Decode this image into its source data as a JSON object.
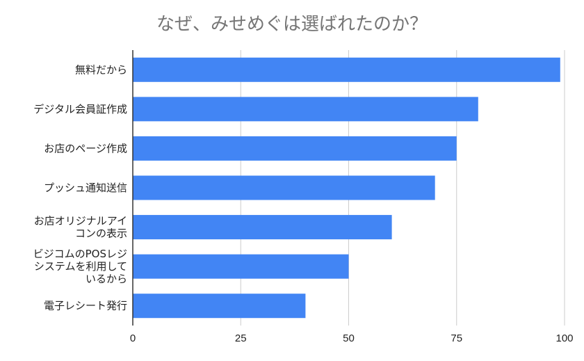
{
  "chart_data": {
    "type": "bar",
    "orientation": "horizontal",
    "title": "なぜ、みせめぐは選ばれたのか？",
    "xlabel": "",
    "ylabel": "",
    "categories": [
      "無料だから",
      "デジタル会員証作成",
      "お店のページ作成",
      "プッシュ通知送信",
      "お店オリジナルアイコンの表示",
      "ビジコムのPOSレジシステムを利用しているから",
      "電子レシート発行"
    ],
    "category_lines": [
      [
        "無料だから"
      ],
      [
        "デジタル会員証作成"
      ],
      [
        "お店のページ作成"
      ],
      [
        "プッシュ通知送信"
      ],
      [
        "お店オリジナルアイ",
        "コンの表示"
      ],
      [
        "ビジコムのPOSレジ",
        "システムを利用して",
        "いるから"
      ],
      [
        "電子レシート発行"
      ]
    ],
    "values": [
      99,
      80,
      75,
      70,
      60,
      50,
      40
    ],
    "xlim": [
      0,
      100
    ],
    "xticks": [
      0,
      25,
      50,
      75,
      100
    ],
    "grid": true,
    "legend": "none",
    "bar_color": "#4285f4"
  }
}
